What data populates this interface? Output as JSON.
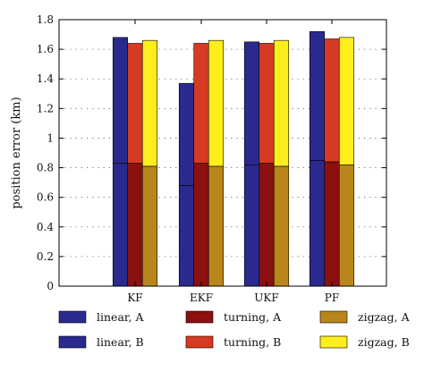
{
  "chart_data": {
    "type": "bar",
    "subtype": "stacked-grouped",
    "ylabel": "position error (km)",
    "ylim": [
      0,
      1.8
    ],
    "yticks": [
      0,
      0.2,
      0.4,
      0.6,
      0.8,
      1,
      1.2,
      1.4,
      1.6,
      1.8
    ],
    "ytick_labels": [
      "0",
      "0.2",
      "0.4",
      "0.6",
      "0.8",
      "1",
      "1.2",
      "1.4",
      "1.6",
      "1.8"
    ],
    "grid": "dotted-horizontal",
    "categories": [
      "KF",
      "EKF",
      "UKF",
      "PF"
    ],
    "groups": [
      {
        "name": "linear",
        "bottom_label": "linear, A",
        "top_label": "linear, B",
        "colors": [
          "#2a2a8e",
          "#2a2a8e"
        ],
        "A": [
          0.83,
          0.68,
          0.82,
          0.85
        ],
        "B": [
          1.68,
          1.37,
          1.65,
          1.72
        ]
      },
      {
        "name": "turning",
        "bottom_label": "turning, A",
        "top_label": "turning, B",
        "colors": [
          "#8b1010",
          "#d63a22"
        ],
        "A": [
          0.83,
          0.83,
          0.83,
          0.84
        ],
        "B": [
          1.64,
          1.64,
          1.64,
          1.67
        ]
      },
      {
        "name": "zigzag",
        "bottom_label": "zigzag, A",
        "top_label": "zigzag, B",
        "colors": [
          "#b8861b",
          "#ffee1e"
        ],
        "A": [
          0.81,
          0.81,
          0.81,
          0.82
        ],
        "B": [
          1.66,
          1.66,
          1.66,
          1.68
        ]
      }
    ],
    "legend": {
      "placement": "bottom",
      "entries": [
        {
          "label": "linear, A",
          "color": "#2a2a8e"
        },
        {
          "label": "turning, A",
          "color": "#8b1010"
        },
        {
          "label": "zigzag, A",
          "color": "#b8861b"
        },
        {
          "label": "linear, B",
          "color": "#2a2a8e"
        },
        {
          "label": "turning, B",
          "color": "#d63a22"
        },
        {
          "label": "zigzag, B",
          "color": "#ffee1e"
        }
      ]
    }
  }
}
